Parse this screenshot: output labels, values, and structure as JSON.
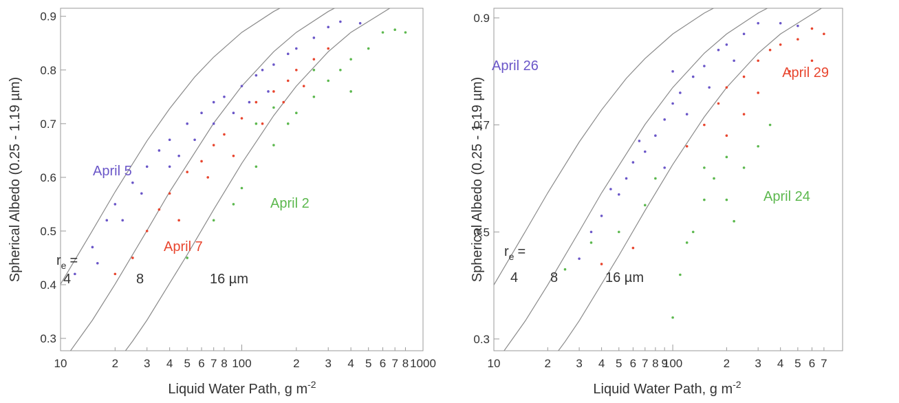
{
  "chart_data": [
    {
      "type": "scatter",
      "xscale": "log",
      "x_label": {
        "text": "Liquid Water Path, g m",
        "superscript": "-2"
      },
      "y_label": "Spherical Albedo (0.25 - 1.19 µm)",
      "xlim": [
        10,
        1000
      ],
      "ylim": [
        0.277,
        0.915
      ],
      "xticks": [
        10,
        {
          "value": 20,
          "label": "2"
        },
        {
          "value": 30,
          "label": "3"
        },
        {
          "value": 40,
          "label": "4"
        },
        {
          "value": 50,
          "label": "5"
        },
        {
          "value": 60,
          "label": "6"
        },
        {
          "value": 70,
          "label": "7"
        },
        {
          "value": 80,
          "label": "8"
        },
        100,
        {
          "value": 200,
          "label": "2"
        },
        {
          "value": 300,
          "label": "3"
        },
        {
          "value": 400,
          "label": "4"
        },
        {
          "value": 500,
          "label": "5"
        },
        {
          "value": 600,
          "label": "6"
        },
        {
          "value": 700,
          "label": "7"
        },
        {
          "value": 800,
          "label": "8"
        },
        1000
      ],
      "yticks": [
        0.3,
        0.4,
        0.5,
        0.6,
        0.7,
        0.8,
        0.9
      ],
      "re_label": {
        "symbol": "r",
        "subscript": "e",
        "suffix": "="
      },
      "curves": [
        {
          "name": "4",
          "color": "#8a8a8a",
          "x": [
            10,
            15,
            20,
            30,
            40,
            55,
            70,
            100,
            150,
            200
          ],
          "values": [
            0.401,
            0.501,
            0.573,
            0.668,
            0.728,
            0.787,
            0.824,
            0.87,
            0.909,
            0.931
          ]
        },
        {
          "name": "8",
          "color": "#8a8a8a",
          "x": [
            10,
            15,
            20,
            30,
            40,
            70,
            100,
            150,
            200,
            300,
            400
          ],
          "values": [
            0.251,
            0.334,
            0.401,
            0.501,
            0.573,
            0.701,
            0.77,
            0.834,
            0.87,
            0.909,
            0.931
          ]
        },
        {
          "name": "16 µm",
          "color": "#8a8a8a",
          "x": [
            20,
            25,
            30,
            50,
            70,
            100,
            150,
            200,
            300,
            400,
            700,
            1000
          ],
          "values": [
            0.251,
            0.295,
            0.334,
            0.456,
            0.54,
            0.626,
            0.715,
            0.77,
            0.834,
            0.87,
            0.921,
            0.944
          ]
        }
      ],
      "series": [
        {
          "name": "April 5",
          "color": "#6a56c8",
          "x": [
            12,
            15,
            18,
            20,
            25,
            30,
            35,
            40,
            50,
            60,
            70,
            80,
            100,
            120,
            150,
            180,
            200,
            250,
            300,
            350,
            450,
            22,
            28,
            45,
            55,
            90,
            110,
            140,
            130,
            70,
            40,
            16
          ],
          "values": [
            0.42,
            0.47,
            0.52,
            0.55,
            0.59,
            0.62,
            0.65,
            0.67,
            0.7,
            0.72,
            0.74,
            0.75,
            0.77,
            0.79,
            0.81,
            0.83,
            0.84,
            0.86,
            0.88,
            0.89,
            0.887,
            0.52,
            0.57,
            0.64,
            0.67,
            0.72,
            0.74,
            0.76,
            0.8,
            0.7,
            0.62,
            0.44
          ]
        },
        {
          "name": "April 7",
          "color": "#e8452e",
          "x": [
            20,
            25,
            30,
            35,
            40,
            50,
            60,
            70,
            80,
            100,
            120,
            150,
            180,
            200,
            250,
            300,
            45,
            65,
            90,
            130,
            170,
            220
          ],
          "values": [
            0.42,
            0.45,
            0.5,
            0.54,
            0.57,
            0.61,
            0.63,
            0.66,
            0.68,
            0.71,
            0.74,
            0.76,
            0.78,
            0.8,
            0.82,
            0.84,
            0.52,
            0.6,
            0.64,
            0.7,
            0.74,
            0.77
          ]
        },
        {
          "name": "April 2",
          "color": "#5cb84e",
          "x": [
            50,
            70,
            100,
            120,
            150,
            180,
            200,
            250,
            300,
            350,
            400,
            500,
            600,
            700,
            800,
            150,
            250,
            120,
            400,
            90
          ],
          "values": [
            0.45,
            0.52,
            0.58,
            0.62,
            0.66,
            0.7,
            0.72,
            0.75,
            0.78,
            0.8,
            0.82,
            0.84,
            0.87,
            0.875,
            0.87,
            0.73,
            0.8,
            0.7,
            0.76,
            0.55
          ]
        }
      ]
    },
    {
      "type": "scatter",
      "xscale": "log",
      "x_label": {
        "text": "Liquid Water Path, g m",
        "superscript": "-2"
      },
      "y_label": "Spherical Albedo (0.25 - 1.19 µm)",
      "xlim": [
        10,
        890
      ],
      "ylim": [
        0.278,
        0.918
      ],
      "xticks": [
        10,
        {
          "value": 20,
          "label": "2"
        },
        {
          "value": 30,
          "label": "3"
        },
        {
          "value": 40,
          "label": "4"
        },
        {
          "value": 50,
          "label": "5"
        },
        {
          "value": 60,
          "label": "6"
        },
        {
          "value": 70,
          "label": "7"
        },
        {
          "value": 80,
          "label": "8"
        },
        {
          "value": 90,
          "label": "9"
        },
        100,
        {
          "value": 200,
          "label": "2"
        },
        {
          "value": 300,
          "label": "3"
        },
        {
          "value": 400,
          "label": "4"
        },
        {
          "value": 500,
          "label": "5"
        },
        {
          "value": 600,
          "label": "6"
        },
        {
          "value": 700,
          "label": "7"
        }
      ],
      "yticks": [
        0.3,
        0.5,
        0.7,
        0.9
      ],
      "re_label": {
        "symbol": "r",
        "subscript": "e",
        "suffix": "="
      },
      "curves": [
        {
          "name": "4",
          "color": "#8a8a8a",
          "x": [
            10,
            15,
            20,
            30,
            40,
            55,
            70,
            100,
            150,
            200
          ],
          "values": [
            0.401,
            0.501,
            0.573,
            0.668,
            0.728,
            0.787,
            0.824,
            0.87,
            0.909,
            0.931
          ]
        },
        {
          "name": "8",
          "color": "#8a8a8a",
          "x": [
            10,
            15,
            20,
            30,
            40,
            70,
            100,
            150,
            200,
            300,
            400
          ],
          "values": [
            0.251,
            0.334,
            0.401,
            0.501,
            0.573,
            0.701,
            0.77,
            0.834,
            0.87,
            0.909,
            0.931
          ]
        },
        {
          "name": "16 µm",
          "color": "#8a8a8a",
          "x": [
            20,
            25,
            30,
            50,
            70,
            100,
            150,
            200,
            300,
            400,
            700,
            890
          ],
          "values": [
            0.251,
            0.295,
            0.334,
            0.456,
            0.54,
            0.626,
            0.715,
            0.77,
            0.834,
            0.87,
            0.921,
            0.937
          ]
        }
      ],
      "series": [
        {
          "name": "April 26",
          "color": "#6a56c8",
          "x": [
            30,
            35,
            40,
            50,
            55,
            60,
            70,
            80,
            90,
            100,
            110,
            130,
            150,
            180,
            200,
            250,
            300,
            400,
            500,
            45,
            65,
            100,
            120,
            160,
            220,
            90
          ],
          "values": [
            0.45,
            0.5,
            0.53,
            0.57,
            0.6,
            0.63,
            0.65,
            0.68,
            0.71,
            0.74,
            0.76,
            0.79,
            0.81,
            0.84,
            0.85,
            0.87,
            0.89,
            0.89,
            0.885,
            0.58,
            0.67,
            0.8,
            0.72,
            0.77,
            0.82,
            0.62
          ]
        },
        {
          "name": "April 29",
          "color": "#e8452e",
          "x": [
            120,
            150,
            180,
            200,
            250,
            300,
            350,
            400,
            500,
            600,
            700,
            250,
            300,
            450,
            600,
            200,
            40,
            60
          ],
          "values": [
            0.66,
            0.7,
            0.74,
            0.77,
            0.79,
            0.82,
            0.84,
            0.85,
            0.86,
            0.88,
            0.87,
            0.72,
            0.76,
            0.8,
            0.82,
            0.68,
            0.44,
            0.47
          ]
        },
        {
          "name": "April 24",
          "color": "#5cb84e",
          "x": [
            25,
            35,
            50,
            70,
            80,
            100,
            110,
            120,
            150,
            170,
            200,
            220,
            250,
            300,
            350,
            200,
            150,
            130
          ],
          "values": [
            0.43,
            0.48,
            0.5,
            0.55,
            0.6,
            0.34,
            0.42,
            0.48,
            0.56,
            0.6,
            0.56,
            0.52,
            0.62,
            0.66,
            0.7,
            0.64,
            0.62,
            0.5
          ]
        }
      ]
    }
  ]
}
